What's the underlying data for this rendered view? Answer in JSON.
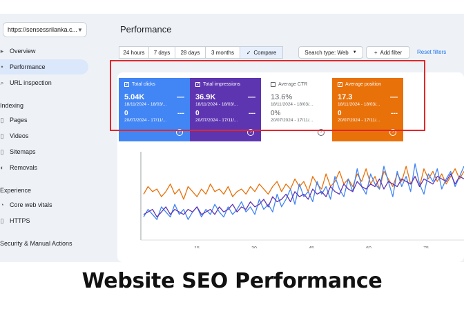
{
  "sidebar": {
    "property": "https://sensessrilanka.c...",
    "items": [
      {
        "label": "Overview",
        "icon": "home-icon",
        "active": false
      },
      {
        "label": "Performance",
        "icon": "trend-icon",
        "active": true
      },
      {
        "label": "URL inspection",
        "icon": "search-icon",
        "active": false
      }
    ],
    "indexing_title": "Indexing",
    "indexing": [
      {
        "label": "Pages",
        "icon": "pages-icon"
      },
      {
        "label": "Videos",
        "icon": "video-icon"
      },
      {
        "label": "Sitemaps",
        "icon": "sitemap-icon"
      },
      {
        "label": "Removals",
        "icon": "removals-icon"
      }
    ],
    "experience_title": "Experience",
    "experience": [
      {
        "label": "Core web vitals",
        "icon": "gauge-icon"
      },
      {
        "label": "HTTPS",
        "icon": "lock-icon"
      }
    ],
    "security_title": "Security & Manual Actions"
  },
  "header": {
    "title": "Performance",
    "ranges": [
      "24 hours",
      "7 days",
      "28 days",
      "3 months"
    ],
    "compare": "Compare",
    "search_type": "Search type: Web",
    "add_filter": "Add filter",
    "reset": "Reset filters"
  },
  "metrics": [
    {
      "label": "Total clicks",
      "value": "5.04K",
      "date1": "18/11/2024 - 18/03/...",
      "value2": "0",
      "date2": "20/07/2024 - 17/11/...",
      "color": "#4285f4",
      "checked": true
    },
    {
      "label": "Total impressions",
      "value": "36.9K",
      "date1": "18/11/2024 - 18/03/...",
      "value2": "0",
      "date2": "20/07/2024 - 17/11/...",
      "color": "#5e35b1",
      "checked": true
    },
    {
      "label": "Average CTR",
      "value": "13.6%",
      "date1": "18/11/2024 - 18/03/...",
      "value2": "0%",
      "date2": "20/07/2024 - 17/11/...",
      "color": "#ffffff",
      "checked": false
    },
    {
      "label": "Average position",
      "value": "17.3",
      "date1": "18/11/2024 - 18/03/...",
      "value2": "0",
      "date2": "20/07/2024 - 17/11/...",
      "color": "#e8710a",
      "checked": true
    }
  ],
  "chart_data": {
    "type": "line",
    "x_ticks": [
      "15",
      "30",
      "45",
      "60",
      "75"
    ],
    "series": [
      {
        "color": "#e8710a",
        "values": [
          14,
          17,
          15,
          16,
          13,
          15,
          18,
          14,
          16,
          12,
          17,
          15,
          13,
          16,
          14,
          18,
          15,
          16,
          14,
          17,
          13,
          15,
          16,
          14,
          17,
          15,
          18,
          16,
          14,
          17,
          19,
          15,
          18,
          16,
          20,
          17,
          19,
          15,
          21,
          18,
          16,
          22,
          17,
          19,
          23,
          18,
          20,
          17,
          22,
          19,
          24,
          18,
          21,
          16,
          23,
          20,
          17,
          22,
          19,
          25,
          18,
          21,
          17,
          24,
          20,
          23,
          19,
          22,
          18,
          21,
          24,
          20,
          23
        ]
      },
      {
        "color": "#4285f4",
        "values": [
          5,
          8,
          6,
          4,
          9,
          7,
          5,
          10,
          6,
          8,
          4,
          7,
          9,
          5,
          8,
          6,
          10,
          7,
          5,
          9,
          6,
          8,
          11,
          7,
          9,
          6,
          12,
          8,
          10,
          7,
          14,
          9,
          12,
          16,
          10,
          18,
          13,
          15,
          11,
          19,
          14,
          17,
          12,
          21,
          16,
          13,
          20,
          15,
          24,
          17,
          14,
          22,
          18,
          16,
          25,
          19,
          13,
          23,
          17,
          21,
          15,
          26,
          18,
          14,
          22,
          19,
          24,
          16,
          20,
          23,
          17,
          21,
          25
        ]
      },
      {
        "color": "#5e35b1",
        "values": [
          6,
          7,
          8,
          5,
          7,
          9,
          6,
          8,
          7,
          6,
          8,
          7,
          9,
          6,
          7,
          8,
          6,
          9,
          7,
          8,
          10,
          7,
          9,
          8,
          11,
          9,
          10,
          12,
          9,
          13,
          11,
          12,
          14,
          11,
          15,
          13,
          14,
          12,
          16,
          14,
          15,
          13,
          17,
          15,
          14,
          18,
          16,
          15,
          19,
          17,
          16,
          18,
          17,
          20,
          16,
          19,
          18,
          17,
          20,
          19,
          18,
          21,
          17,
          20,
          19,
          18,
          21,
          20,
          19,
          22,
          18,
          21,
          20
        ]
      }
    ]
  },
  "caption": "Website SEO Performance"
}
